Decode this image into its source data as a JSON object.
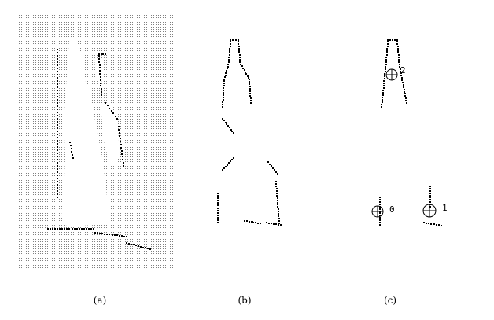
{
  "figure": {
    "captions": [
      "(a)",
      "(b)",
      "(c)"
    ],
    "panel_c_points": [
      {
        "label": "2"
      },
      {
        "label": "0"
      },
      {
        "label": "1"
      }
    ],
    "colors": {
      "ink": "#000000",
      "grid_dot": "#808080",
      "background": "#ffffff"
    }
  }
}
